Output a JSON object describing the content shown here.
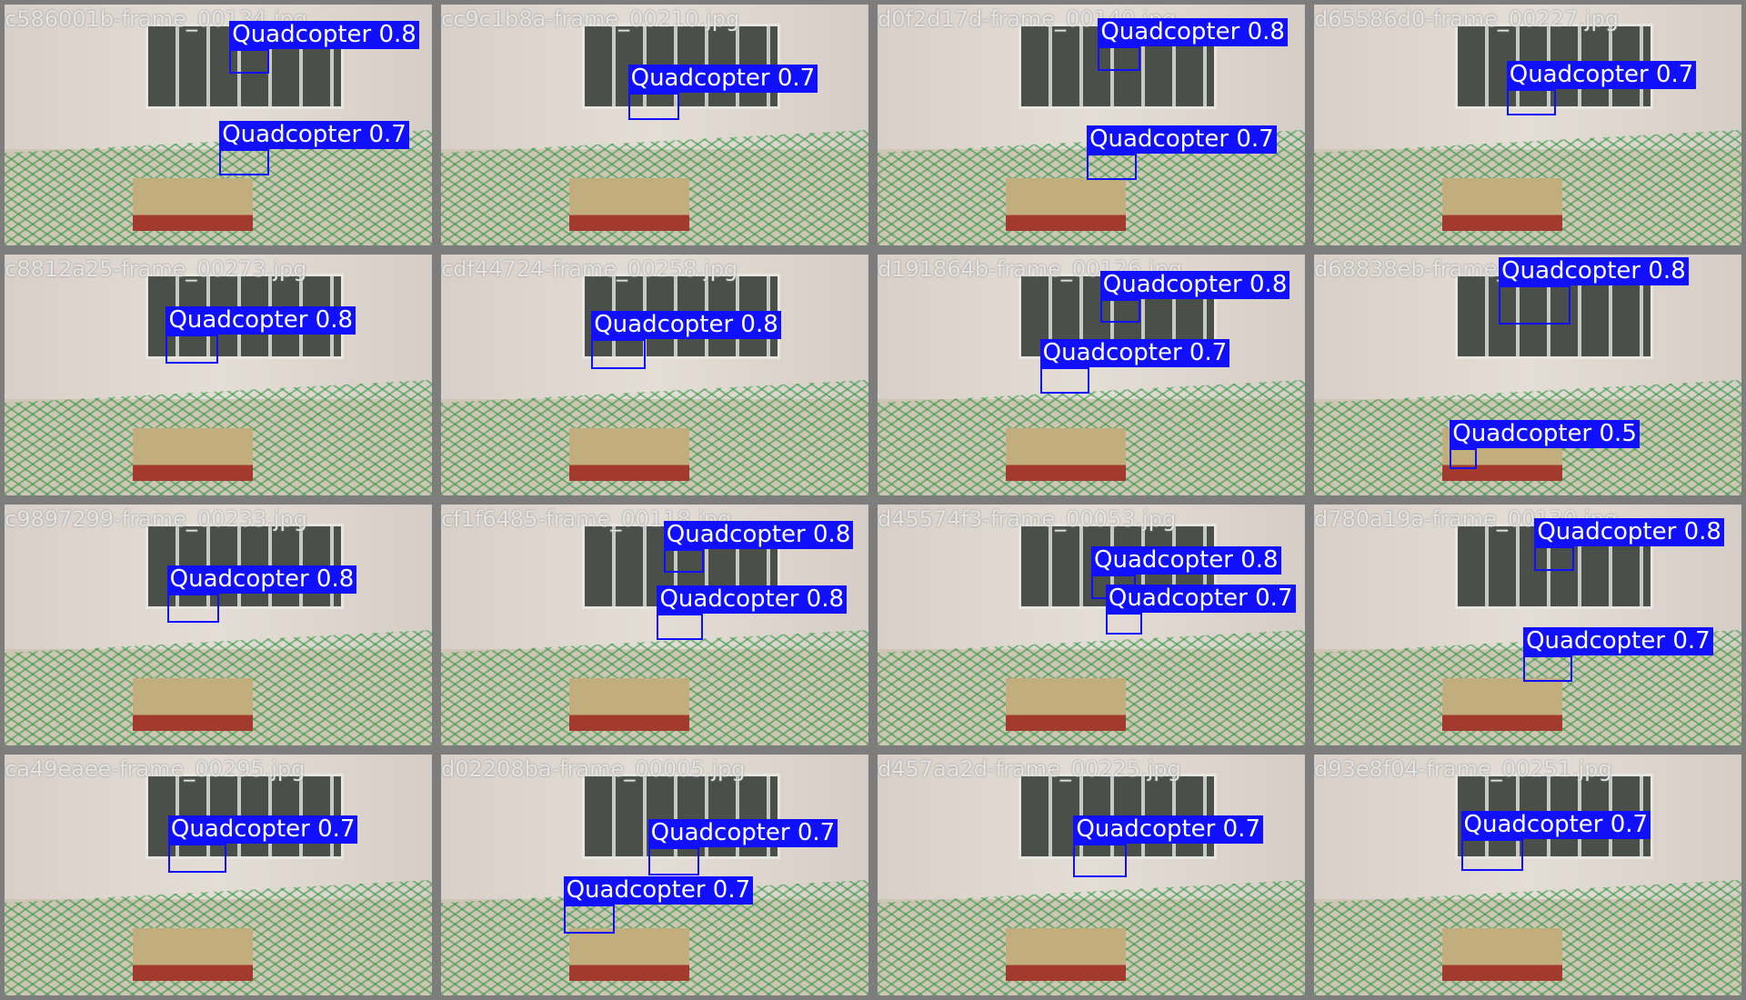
{
  "tiles": [
    {
      "filename": "c586001b-frame_00134.jpg",
      "detections": [
        {
          "label": "Quadcopter 0.8"
        },
        {
          "label": "Quadcopter 0.7"
        }
      ]
    },
    {
      "filename": "cc9c1b8a-frame_00210.jpg",
      "detections": [
        {
          "label": "Quadcopter 0.7"
        }
      ]
    },
    {
      "filename": "d0f2d17d-frame_00140.jpg",
      "detections": [
        {
          "label": "Quadcopter 0.8"
        },
        {
          "label": "Quadcopter 0.7"
        }
      ]
    },
    {
      "filename": "d65586d0-frame_00227.jpg",
      "detections": [
        {
          "label": "Quadcopter 0.7"
        }
      ]
    },
    {
      "filename": "c8812a25-frame_00273.jpg",
      "detections": [
        {
          "label": "Quadcopter 0.8"
        }
      ]
    },
    {
      "filename": "cdf44724-frame_00258.jpg",
      "detections": [
        {
          "label": "Quadcopter 0.8"
        }
      ]
    },
    {
      "filename": "d191864b-frame_00126.jpg",
      "detections": [
        {
          "label": "Quadcopter 0.8"
        },
        {
          "label": "Quadcopter 0.7"
        }
      ]
    },
    {
      "filename": "d68838eb-frame_00185.jpg",
      "detections": [
        {
          "label": "Quadcopter 0.8"
        },
        {
          "label": "Quadcopter 0.5"
        }
      ]
    },
    {
      "filename": "c9897299-frame_00233.jpg",
      "detections": [
        {
          "label": "Quadcopter 0.8"
        }
      ]
    },
    {
      "filename": "cf1f6485-frame_00118.jpg",
      "detections": [
        {
          "label": "Quadcopter 0.8"
        },
        {
          "label": "Quadcopter 0.8"
        }
      ]
    },
    {
      "filename": "d45574f3-frame_00053.jpg",
      "detections": [
        {
          "label": "Quadcopter 0.8"
        },
        {
          "label": "Quadcopter 0.7"
        }
      ]
    },
    {
      "filename": "d780a19a-frame_00130.jpg",
      "detections": [
        {
          "label": "Quadcopter 0.8"
        },
        {
          "label": "Quadcopter 0.7"
        }
      ]
    },
    {
      "filename": "ca49eaee-frame_00295.jpg",
      "detections": [
        {
          "label": "Quadcopter 0.7"
        }
      ]
    },
    {
      "filename": "d02208ba-frame_00005.jpg",
      "detections": [
        {
          "label": "Quadcopter 0.7"
        },
        {
          "label": "Quadcopter 0.7"
        }
      ]
    },
    {
      "filename": "d457aa2d-frame_00225.jpg",
      "detections": [
        {
          "label": "Quadcopter 0.7"
        }
      ]
    },
    {
      "filename": "d93e8f04-frame_00251.jpg",
      "detections": [
        {
          "label": "Quadcopter 0.7"
        }
      ]
    }
  ]
}
